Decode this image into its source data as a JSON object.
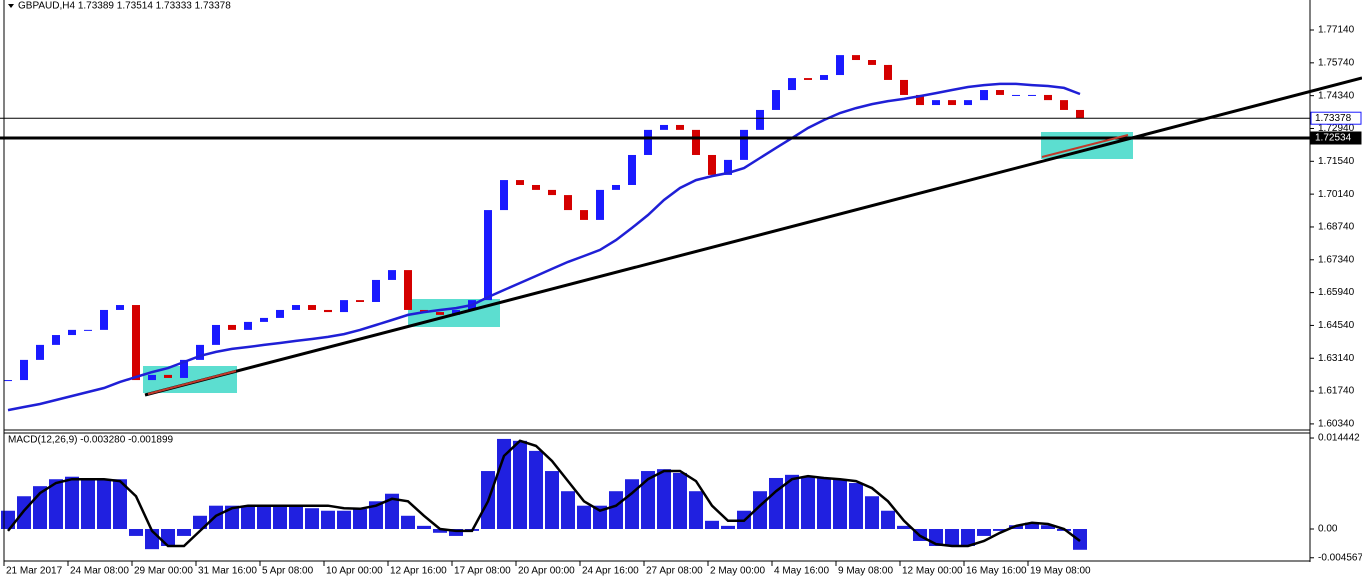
{
  "chart_data": [
    {
      "type": "candlestick",
      "title": "GBPAUD,H4  1.73389 1.73514 1.73333 1.73378",
      "categories": [
        "21 Mar 2017",
        null,
        null,
        null,
        "24 Mar 08:00",
        null,
        null,
        null,
        "29 Mar 00:00",
        null,
        null,
        null,
        "31 Mar 16:00",
        null,
        null,
        null,
        "5 Apr 08:00",
        null,
        null,
        null,
        "10 Apr 00:00",
        null,
        null,
        null,
        "12 Apr 16:00",
        null,
        null,
        null,
        "17 Apr 08:00",
        null,
        null,
        null,
        "20 Apr 00:00",
        null,
        null,
        null,
        "24 Apr 16:00",
        null,
        null,
        null,
        "27 Apr 08:00",
        null,
        null,
        null,
        "2 May 00:00",
        null,
        null,
        null,
        "4 May 16:00",
        null,
        null,
        null,
        "9 May 08:00",
        null,
        null,
        null,
        "12 May 00:00",
        null,
        null,
        null,
        "16 May 16:00",
        null,
        null,
        null,
        "19 May 08:00",
        null,
        null,
        null
      ],
      "values": [
        1.6221,
        1.6307,
        1.6371,
        1.6413,
        1.6435,
        1.6435,
        1.652,
        1.6541,
        1.6221,
        1.6243,
        1.623,
        1.6307,
        1.6371,
        1.6456,
        1.6435,
        1.6469,
        1.6486,
        1.652,
        1.6541,
        1.652,
        1.6511,
        1.6562,
        1.6554,
        1.6648,
        1.669,
        1.652,
        1.6511,
        1.6499,
        1.652,
        1.6562,
        1.6946,
        1.7074,
        1.7053,
        1.7032,
        1.701,
        1.6946,
        1.6904,
        1.7032,
        1.7053,
        1.7181,
        1.7288,
        1.7309,
        1.7288,
        1.7181,
        1.7096,
        1.716,
        1.7288,
        1.7373,
        1.7458,
        1.7509,
        1.7501,
        1.7522,
        1.7607,
        1.7586,
        1.7565,
        1.7501,
        1.7437,
        1.7394,
        1.7415,
        1.7394,
        1.7415,
        1.7458,
        1.7437,
        1.7437,
        1.7437,
        1.7415,
        1.7373,
        1.7338
      ],
      "up_color": "#1a1aff",
      "down_color": "#d40000",
      "ma": {
        "color": "#1f1fd6",
        "values": [
          1.6093,
          1.6106,
          1.6119,
          1.6136,
          1.6153,
          1.617,
          1.6187,
          1.6213,
          1.6234,
          1.6255,
          1.6272,
          1.6298,
          1.6324,
          1.6341,
          1.6354,
          1.6362,
          1.6371,
          1.6379,
          1.6388,
          1.6396,
          1.6405,
          1.6417,
          1.6435,
          1.6456,
          1.6477,
          1.6499,
          1.6511,
          1.652,
          1.6528,
          1.6541,
          1.6575,
          1.6605,
          1.6635,
          1.6665,
          1.6695,
          1.6725,
          1.675,
          1.6776,
          1.6818,
          1.687,
          1.6925,
          1.6989,
          1.704,
          1.7074,
          1.7091,
          1.7104,
          1.7125,
          1.7168,
          1.7211,
          1.7253,
          1.7296,
          1.733,
          1.736,
          1.7381,
          1.7398,
          1.7411,
          1.742,
          1.7432,
          1.7445,
          1.7458,
          1.7471,
          1.7479,
          1.7484,
          1.7484,
          1.7479,
          1.7475,
          1.7467,
          1.7441
        ]
      },
      "price_lines": [
        {
          "value": 1.73378,
          "label": "1.73378"
        },
        {
          "value": 1.72534,
          "label": "1.72534"
        }
      ],
      "ylim": [
        1.6008,
        1.7842
      ],
      "yticks": [
        {
          "value": 1.7714,
          "label": "1.77140"
        },
        {
          "value": 1.7574,
          "label": "1.75740"
        },
        {
          "value": 1.7434,
          "label": "1.74340"
        },
        {
          "value": 1.7294,
          "label": "1.72940"
        },
        {
          "value": 1.7154,
          "label": "1.71540"
        },
        {
          "value": 1.7014,
          "label": "1.70140"
        },
        {
          "value": 1.6874,
          "label": "1.68740"
        },
        {
          "value": 1.6734,
          "label": "1.67340"
        },
        {
          "value": 1.6594,
          "label": "1.65940"
        },
        {
          "value": 1.6454,
          "label": "1.64540"
        },
        {
          "value": 1.6314,
          "label": "1.63140"
        },
        {
          "value": 1.6174,
          "label": "1.61740"
        },
        {
          "value": 1.6034,
          "label": "1.60340"
        }
      ]
    },
    {
      "type": "bar",
      "title": "MACD(12,26,9) -0.003280 -0.001899",
      "values": [
        0.0029,
        0.0052,
        0.0068,
        0.0079,
        0.0083,
        0.0079,
        0.0079,
        0.0079,
        -0.0011,
        -0.0032,
        -0.0027,
        -0.0011,
        0.0021,
        0.0037,
        0.0037,
        0.0037,
        0.0037,
        0.0037,
        0.0037,
        0.0033,
        0.0029,
        0.0029,
        0.0032,
        0.0044,
        0.0056,
        0.0021,
        0.0005,
        -0.0006,
        -0.0011,
        -0.0003,
        0.0092,
        0.0143,
        0.014,
        0.0124,
        0.0092,
        0.006,
        0.0037,
        0.0037,
        0.006,
        0.0079,
        0.0092,
        0.0095,
        0.0089,
        0.006,
        0.0013,
        0.0005,
        0.0029,
        0.006,
        0.0081,
        0.0086,
        0.0083,
        0.0081,
        0.0079,
        0.0073,
        0.0052,
        0.0029,
        0.0005,
        -0.0019,
        -0.0027,
        -0.0027,
        -0.0027,
        -0.0011,
        -0.0003,
        0.0006,
        0.001,
        0.0006,
        -0.0003,
        -0.0033
      ],
      "color": "#2020e0",
      "signal": {
        "color": "#000000",
        "values": [
          -0.0003,
          0.0029,
          0.0057,
          0.0073,
          0.0079,
          0.0079,
          0.0079,
          0.0076,
          0.0052,
          -0.0003,
          -0.0027,
          -0.0027,
          -0.0003,
          0.0021,
          0.0033,
          0.0037,
          0.0037,
          0.0037,
          0.0037,
          0.0037,
          0.0037,
          0.0033,
          0.0032,
          0.0037,
          0.0048,
          0.0044,
          0.0021,
          0,
          -0.0003,
          -0.0003,
          0.0044,
          0.0116,
          0.014,
          0.0132,
          0.0108,
          0.0076,
          0.0044,
          0.0029,
          0.0037,
          0.0057,
          0.0079,
          0.0092,
          0.0092,
          0.0076,
          0.0037,
          0.0013,
          0.0013,
          0.0037,
          0.006,
          0.0079,
          0.0084,
          0.0081,
          0.0079,
          0.0076,
          0.0065,
          0.0044,
          0.0013,
          -0.0011,
          -0.0024,
          -0.0027,
          -0.0027,
          -0.0019,
          -0.0006,
          0.0005,
          0.001,
          0.0008,
          0,
          -0.0019
        ]
      },
      "ylim": [
        -0.00508,
        0.01524
      ],
      "yticks": [
        0.014442,
        {
          "value": 0,
          "label": "0.00"
        },
        -0.004567
      ]
    }
  ]
}
